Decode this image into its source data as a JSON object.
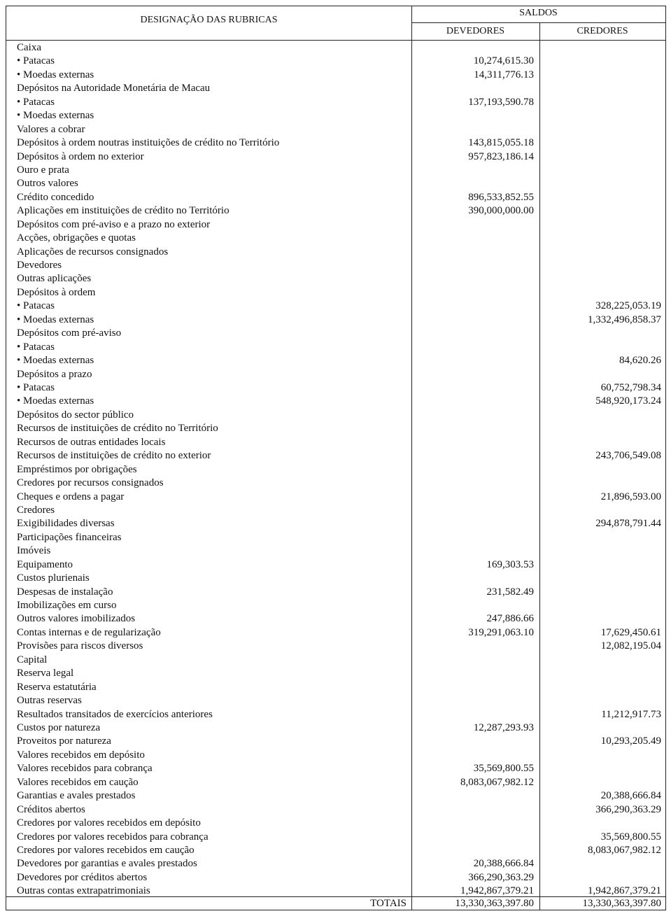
{
  "header": {
    "designation": "DESIGNAÇÃO DAS RUBRICAS",
    "saldos": "SALDOS",
    "devedores": "DEVEDORES",
    "credores": "CREDORES"
  },
  "rows": [
    [
      "Caixa",
      "",
      ""
    ],
    [
      "• Patacas",
      "10,274,615.30",
      ""
    ],
    [
      "• Moedas externas",
      "14,311,776.13",
      ""
    ],
    [
      "Depósitos na Autoridade Monetária de Macau",
      "",
      ""
    ],
    [
      "• Patacas",
      "137,193,590.78",
      ""
    ],
    [
      "• Moedas externas",
      "",
      ""
    ],
    [
      "Valores a cobrar",
      "",
      ""
    ],
    [
      "Depósitos à ordem noutras instituições de crédito no Território",
      "143,815,055.18",
      ""
    ],
    [
      "Depósitos à ordem no exterior",
      "957,823,186.14",
      ""
    ],
    [
      "Ouro e prata",
      "",
      ""
    ],
    [
      "Outros valores",
      "",
      ""
    ],
    [
      "Crédito concedido",
      "896,533,852.55",
      ""
    ],
    [
      "Aplicações em instituições de crédito no Território",
      "390,000,000.00",
      ""
    ],
    [
      "Depósitos com pré-aviso e a prazo no exterior",
      "",
      ""
    ],
    [
      "Acções, obrigações e quotas",
      "",
      ""
    ],
    [
      "Aplicações de recursos consignados",
      "",
      ""
    ],
    [
      "Devedores",
      "",
      ""
    ],
    [
      "Outras aplicações",
      "",
      ""
    ],
    [
      "Depósitos à ordem",
      "",
      ""
    ],
    [
      "• Patacas",
      "",
      "328,225,053.19"
    ],
    [
      "• Moedas externas",
      "",
      "1,332,496,858.37"
    ],
    [
      "Depósitos com pré-aviso",
      "",
      ""
    ],
    [
      "• Patacas",
      "",
      ""
    ],
    [
      "• Moedas externas",
      "",
      "84,620.26"
    ],
    [
      "Depósitos a prazo",
      "",
      ""
    ],
    [
      "• Patacas",
      "",
      "60,752,798.34"
    ],
    [
      "• Moedas externas",
      "",
      "548,920,173.24"
    ],
    [
      "Depósitos do sector público",
      "",
      ""
    ],
    [
      "Recursos de instituições de crédito no Território",
      "",
      ""
    ],
    [
      "Recursos de outras entidades locais",
      "",
      ""
    ],
    [
      "Recursos de instituições de crédito no exterior",
      "",
      "243,706,549.08"
    ],
    [
      "Empréstimos por obrigações",
      "",
      ""
    ],
    [
      "Credores por recursos consignados",
      "",
      ""
    ],
    [
      "Cheques e ordens a pagar",
      "",
      "21,896,593.00"
    ],
    [
      "Credores",
      "",
      ""
    ],
    [
      "Exigibilidades diversas",
      "",
      "294,878,791.44"
    ],
    [
      "Participações financeiras",
      "",
      ""
    ],
    [
      "Imóveis",
      "",
      ""
    ],
    [
      "Equipamento",
      "169,303.53",
      ""
    ],
    [
      "Custos plurienais",
      "",
      ""
    ],
    [
      "Despesas de instalação",
      "231,582.49",
      ""
    ],
    [
      "Imobilizações em curso",
      "",
      ""
    ],
    [
      "Outros valores imobilizados",
      "247,886.66",
      ""
    ],
    [
      "Contas internas e de regularização",
      "319,291,063.10",
      "17,629,450.61"
    ],
    [
      "Provisões para riscos diversos",
      "",
      "12,082,195.04"
    ],
    [
      "Capital",
      "",
      ""
    ],
    [
      "Reserva legal",
      "",
      ""
    ],
    [
      "Reserva estatutária",
      "",
      ""
    ],
    [
      "Outras reservas",
      "",
      ""
    ],
    [
      "Resultados transitados de exercícios anteriores",
      "",
      "11,212,917.73"
    ],
    [
      "Custos por natureza",
      "12,287,293.93",
      ""
    ],
    [
      "Proveitos por natureza",
      "",
      "10,293,205.49"
    ],
    [
      "Valores recebidos em depósito",
      "",
      ""
    ],
    [
      "Valores recebidos para cobrança",
      "35,569,800.55",
      ""
    ],
    [
      "Valores recebidos em caução",
      "8,083,067,982.12",
      ""
    ],
    [
      "Garantias e avales prestados",
      "",
      "20,388,666.84"
    ],
    [
      "Créditos abertos",
      "",
      "366,290,363.29"
    ],
    [
      "Credores por valores recebidos em depósito",
      "",
      ""
    ],
    [
      "Credores por valores recebidos para cobrança",
      "",
      "35,569,800.55"
    ],
    [
      "Credores por valores recebidos em caução",
      "",
      "8,083,067,982.12"
    ],
    [
      "Devedores por garantias e avales prestados",
      "20,388,666.84",
      ""
    ],
    [
      "Devedores por créditos abertos",
      "366,290,363.29",
      ""
    ],
    [
      "Outras contas extrapatrimoniais",
      "1,942,867,379.21",
      "1,942,867,379.21"
    ]
  ],
  "totals": {
    "label": "TOTAIS",
    "devedores": "13,330,363,397.80",
    "credores": "13,330,363,397.80"
  }
}
